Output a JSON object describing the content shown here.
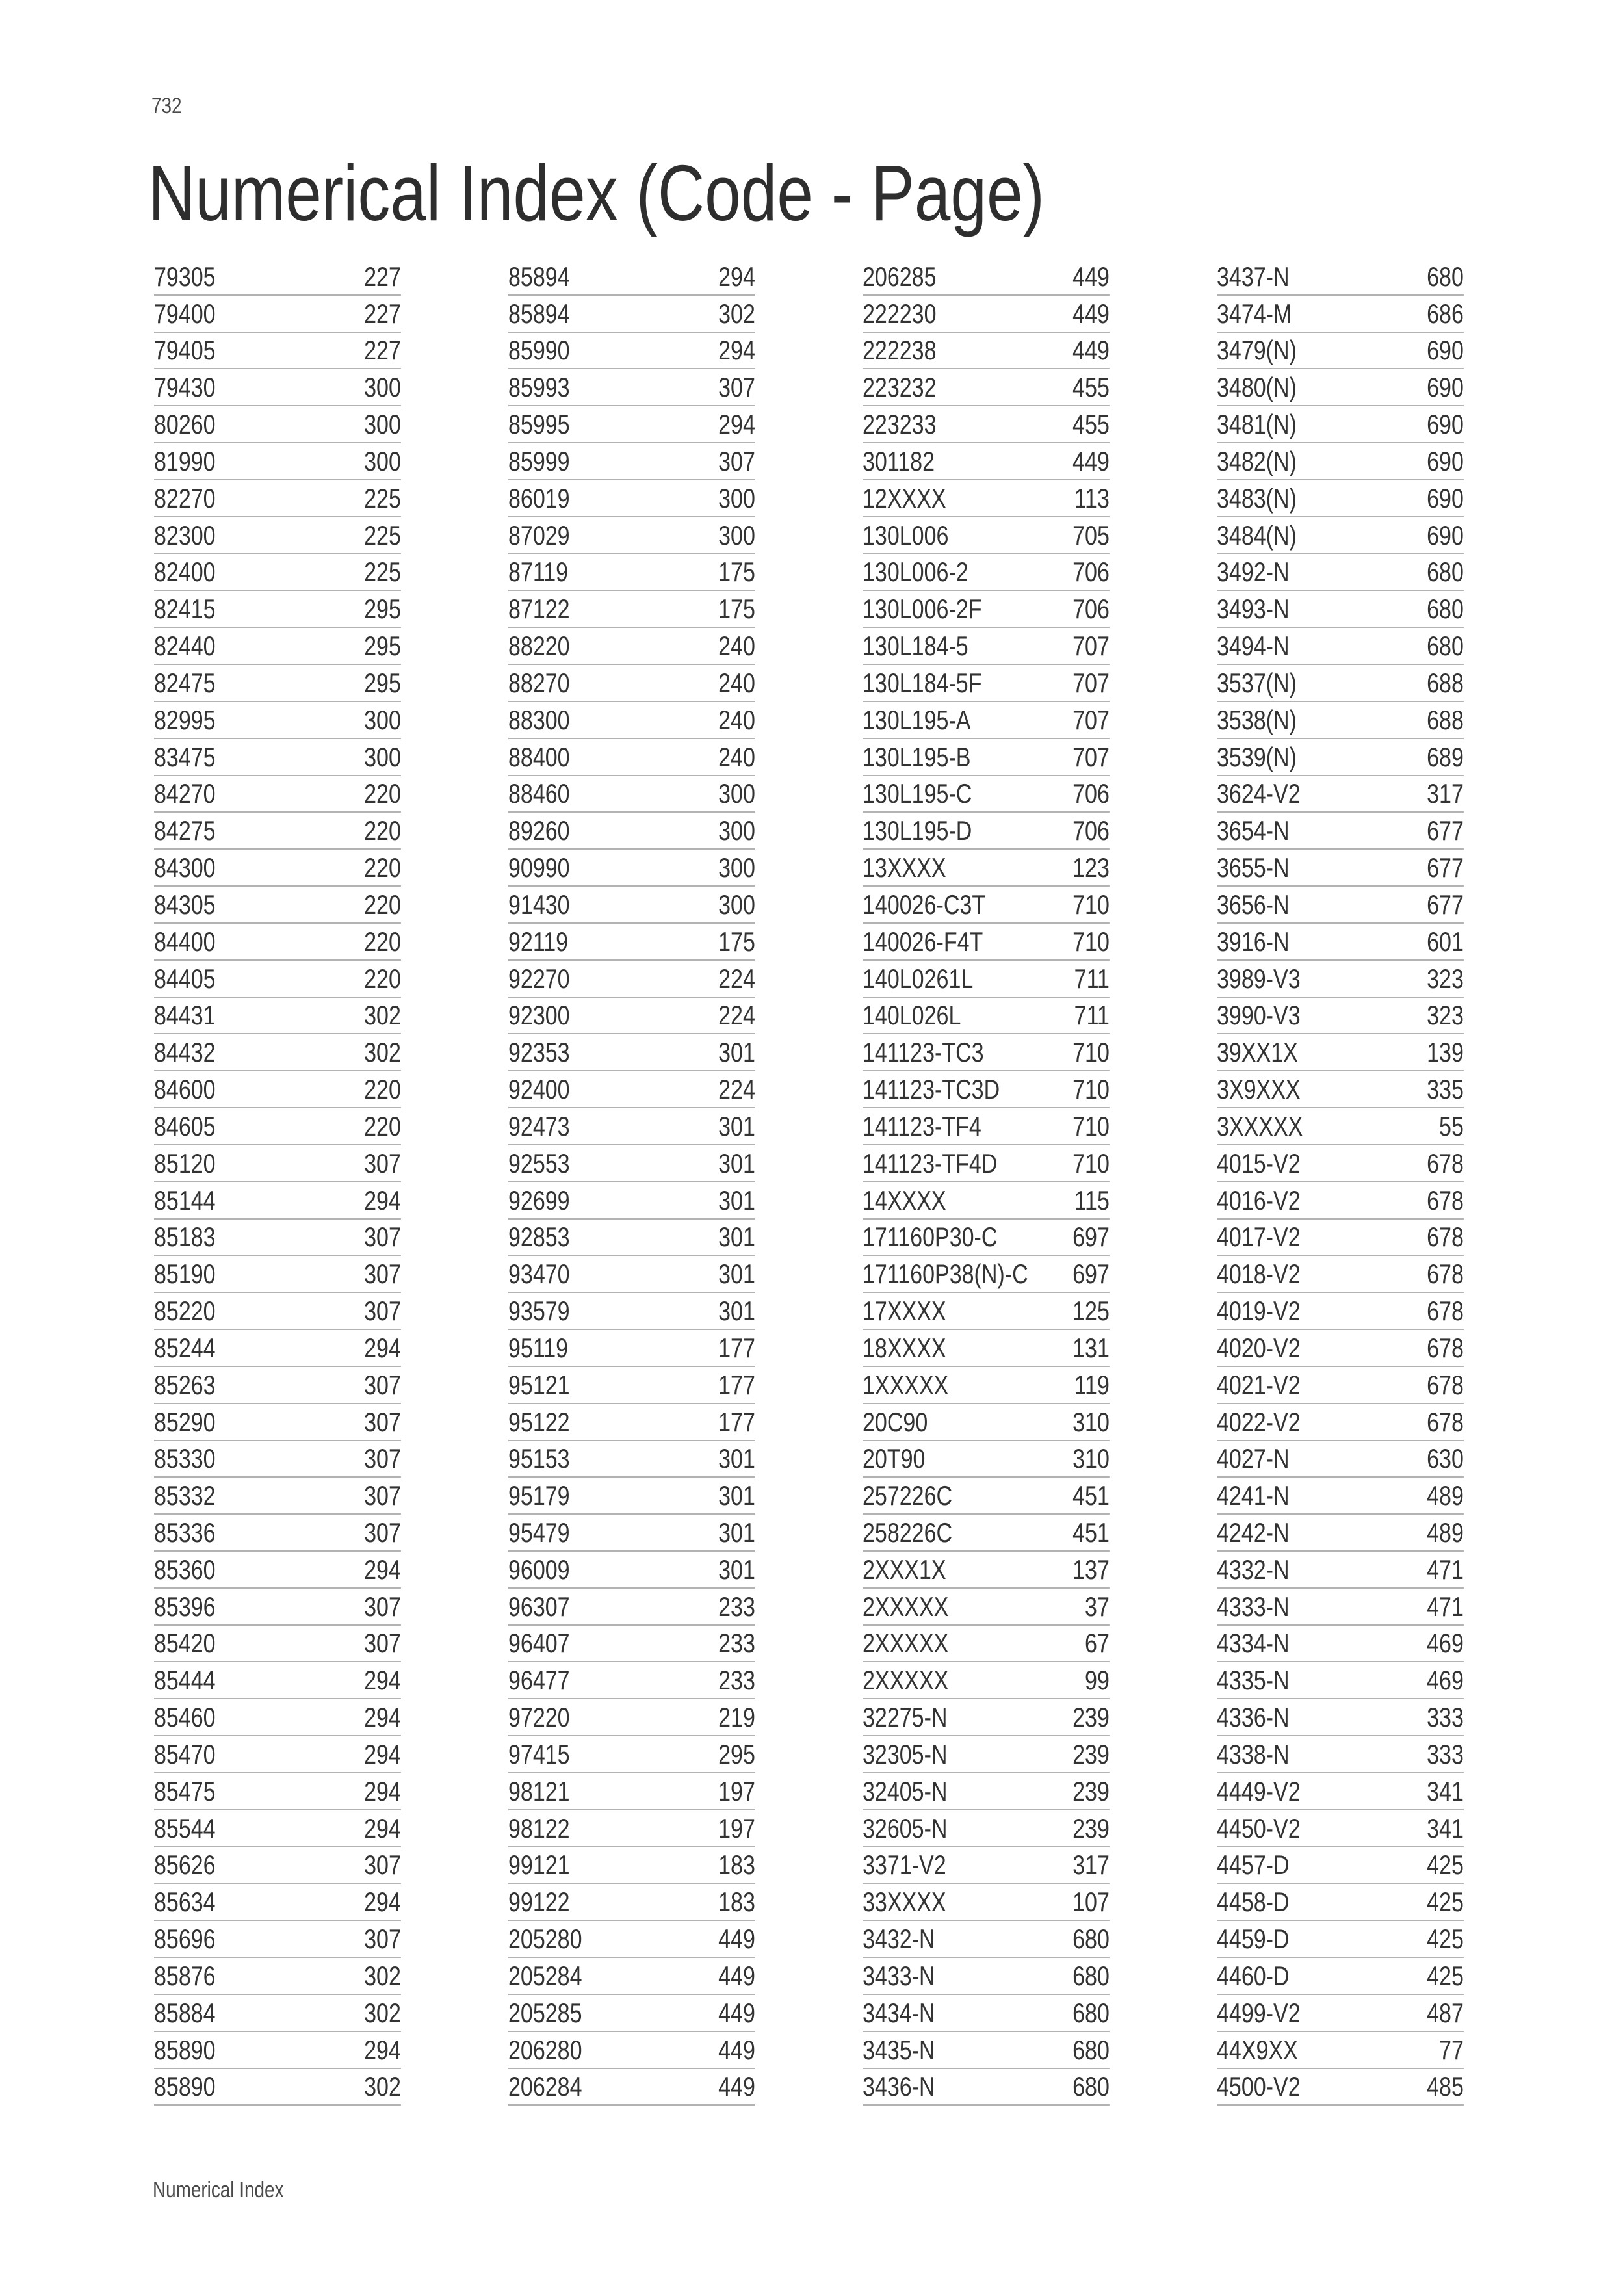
{
  "page": {
    "number": "732",
    "title": "Numerical Index (Code - Page)",
    "footer": "Numerical Index"
  },
  "index": {
    "columns": [
      {
        "entries": [
          {
            "code": "79305",
            "page": "227"
          },
          {
            "code": "79400",
            "page": "227"
          },
          {
            "code": "79405",
            "page": "227"
          },
          {
            "code": "79430",
            "page": "300"
          },
          {
            "code": "80260",
            "page": "300"
          },
          {
            "code": "81990",
            "page": "300"
          },
          {
            "code": "82270",
            "page": "225"
          },
          {
            "code": "82300",
            "page": "225"
          },
          {
            "code": "82400",
            "page": "225"
          },
          {
            "code": "82415",
            "page": "295"
          },
          {
            "code": "82440",
            "page": "295"
          },
          {
            "code": "82475",
            "page": "295"
          },
          {
            "code": "82995",
            "page": "300"
          },
          {
            "code": "83475",
            "page": "300"
          },
          {
            "code": "84270",
            "page": "220"
          },
          {
            "code": "84275",
            "page": "220"
          },
          {
            "code": "84300",
            "page": "220"
          },
          {
            "code": "84305",
            "page": "220"
          },
          {
            "code": "84400",
            "page": "220"
          },
          {
            "code": "84405",
            "page": "220"
          },
          {
            "code": "84431",
            "page": "302"
          },
          {
            "code": "84432",
            "page": "302"
          },
          {
            "code": "84600",
            "page": "220"
          },
          {
            "code": "84605",
            "page": "220"
          },
          {
            "code": "85120",
            "page": "307"
          },
          {
            "code": "85144",
            "page": "294"
          },
          {
            "code": "85183",
            "page": "307"
          },
          {
            "code": "85190",
            "page": "307"
          },
          {
            "code": "85220",
            "page": "307"
          },
          {
            "code": "85244",
            "page": "294"
          },
          {
            "code": "85263",
            "page": "307"
          },
          {
            "code": "85290",
            "page": "307"
          },
          {
            "code": "85330",
            "page": "307"
          },
          {
            "code": "85332",
            "page": "307"
          },
          {
            "code": "85336",
            "page": "307"
          },
          {
            "code": "85360",
            "page": "294"
          },
          {
            "code": "85396",
            "page": "307"
          },
          {
            "code": "85420",
            "page": "307"
          },
          {
            "code": "85444",
            "page": "294"
          },
          {
            "code": "85460",
            "page": "294"
          },
          {
            "code": "85470",
            "page": "294"
          },
          {
            "code": "85475",
            "page": "294"
          },
          {
            "code": "85544",
            "page": "294"
          },
          {
            "code": "85626",
            "page": "307"
          },
          {
            "code": "85634",
            "page": "294"
          },
          {
            "code": "85696",
            "page": "307"
          },
          {
            "code": "85876",
            "page": "302"
          },
          {
            "code": "85884",
            "page": "302"
          },
          {
            "code": "85890",
            "page": "294"
          },
          {
            "code": "85890",
            "page": "302"
          }
        ]
      },
      {
        "entries": [
          {
            "code": "85894",
            "page": "294"
          },
          {
            "code": "85894",
            "page": "302"
          },
          {
            "code": "85990",
            "page": "294"
          },
          {
            "code": "85993",
            "page": "307"
          },
          {
            "code": "85995",
            "page": "294"
          },
          {
            "code": "85999",
            "page": "307"
          },
          {
            "code": "86019",
            "page": "300"
          },
          {
            "code": "87029",
            "page": "300"
          },
          {
            "code": "87119",
            "page": "175"
          },
          {
            "code": "87122",
            "page": "175"
          },
          {
            "code": "88220",
            "page": "240"
          },
          {
            "code": "88270",
            "page": "240"
          },
          {
            "code": "88300",
            "page": "240"
          },
          {
            "code": "88400",
            "page": "240"
          },
          {
            "code": "88460",
            "page": "300"
          },
          {
            "code": "89260",
            "page": "300"
          },
          {
            "code": "90990",
            "page": "300"
          },
          {
            "code": "91430",
            "page": "300"
          },
          {
            "code": "92119",
            "page": "175"
          },
          {
            "code": "92270",
            "page": "224"
          },
          {
            "code": "92300",
            "page": "224"
          },
          {
            "code": "92353",
            "page": "301"
          },
          {
            "code": "92400",
            "page": "224"
          },
          {
            "code": "92473",
            "page": "301"
          },
          {
            "code": "92553",
            "page": "301"
          },
          {
            "code": "92699",
            "page": "301"
          },
          {
            "code": "92853",
            "page": "301"
          },
          {
            "code": "93470",
            "page": "301"
          },
          {
            "code": "93579",
            "page": "301"
          },
          {
            "code": "95119",
            "page": "177"
          },
          {
            "code": "95121",
            "page": "177"
          },
          {
            "code": "95122",
            "page": "177"
          },
          {
            "code": "95153",
            "page": "301"
          },
          {
            "code": "95179",
            "page": "301"
          },
          {
            "code": "95479",
            "page": "301"
          },
          {
            "code": "96009",
            "page": "301"
          },
          {
            "code": "96307",
            "page": "233"
          },
          {
            "code": "96407",
            "page": "233"
          },
          {
            "code": "96477",
            "page": "233"
          },
          {
            "code": "97220",
            "page": "219"
          },
          {
            "code": "97415",
            "page": "295"
          },
          {
            "code": "98121",
            "page": "197"
          },
          {
            "code": "98122",
            "page": "197"
          },
          {
            "code": "99121",
            "page": "183"
          },
          {
            "code": "99122",
            "page": "183"
          },
          {
            "code": "205280",
            "page": "449"
          },
          {
            "code": "205284",
            "page": "449"
          },
          {
            "code": "205285",
            "page": "449"
          },
          {
            "code": "206280",
            "page": "449"
          },
          {
            "code": "206284",
            "page": "449"
          }
        ]
      },
      {
        "entries": [
          {
            "code": "206285",
            "page": "449"
          },
          {
            "code": "222230",
            "page": "449"
          },
          {
            "code": "222238",
            "page": "449"
          },
          {
            "code": "223232",
            "page": "455"
          },
          {
            "code": "223233",
            "page": "455"
          },
          {
            "code": "301182",
            "page": "449"
          },
          {
            "code": "12XXXX",
            "page": "113"
          },
          {
            "code": "130L006",
            "page": "705"
          },
          {
            "code": "130L006-2",
            "page": "706"
          },
          {
            "code": "130L006-2F",
            "page": "706"
          },
          {
            "code": "130L184-5",
            "page": "707"
          },
          {
            "code": "130L184-5F",
            "page": "707"
          },
          {
            "code": "130L195-A",
            "page": "707"
          },
          {
            "code": "130L195-B",
            "page": "707"
          },
          {
            "code": "130L195-C",
            "page": "706"
          },
          {
            "code": "130L195-D",
            "page": "706"
          },
          {
            "code": "13XXXX",
            "page": "123"
          },
          {
            "code": "140026-C3T",
            "page": "710"
          },
          {
            "code": "140026-F4T",
            "page": "710"
          },
          {
            "code": "140L0261L",
            "page": "711"
          },
          {
            "code": "140L026L",
            "page": "711"
          },
          {
            "code": "141123-TC3",
            "page": "710"
          },
          {
            "code": "141123-TC3D",
            "page": "710"
          },
          {
            "code": "141123-TF4",
            "page": "710"
          },
          {
            "code": "141123-TF4D",
            "page": "710"
          },
          {
            "code": "14XXXX",
            "page": "115"
          },
          {
            "code": "171160P30-C",
            "page": "697"
          },
          {
            "code": "171160P38(N)-C",
            "page": "697"
          },
          {
            "code": "17XXXX",
            "page": "125"
          },
          {
            "code": "18XXXX",
            "page": "131"
          },
          {
            "code": "1XXXXX",
            "page": "119"
          },
          {
            "code": "20C90",
            "page": "310"
          },
          {
            "code": "20T90",
            "page": "310"
          },
          {
            "code": "257226C",
            "page": "451"
          },
          {
            "code": "258226C",
            "page": "451"
          },
          {
            "code": "2XXX1X",
            "page": "137"
          },
          {
            "code": "2XXXXX",
            "page": "37"
          },
          {
            "code": "2XXXXX",
            "page": "67"
          },
          {
            "code": "2XXXXX",
            "page": "99"
          },
          {
            "code": "32275-N",
            "page": "239"
          },
          {
            "code": "32305-N",
            "page": "239"
          },
          {
            "code": "32405-N",
            "page": "239"
          },
          {
            "code": "32605-N",
            "page": "239"
          },
          {
            "code": "3371-V2",
            "page": "317"
          },
          {
            "code": "33XXXX",
            "page": "107"
          },
          {
            "code": "3432-N",
            "page": "680"
          },
          {
            "code": "3433-N",
            "page": "680"
          },
          {
            "code": "3434-N",
            "page": "680"
          },
          {
            "code": "3435-N",
            "page": "680"
          },
          {
            "code": "3436-N",
            "page": "680"
          }
        ]
      },
      {
        "entries": [
          {
            "code": "3437-N",
            "page": "680"
          },
          {
            "code": "3474-M",
            "page": "686"
          },
          {
            "code": "3479(N)",
            "page": "690"
          },
          {
            "code": "3480(N)",
            "page": "690"
          },
          {
            "code": "3481(N)",
            "page": "690"
          },
          {
            "code": "3482(N)",
            "page": "690"
          },
          {
            "code": "3483(N)",
            "page": "690"
          },
          {
            "code": "3484(N)",
            "page": "690"
          },
          {
            "code": "3492-N",
            "page": "680"
          },
          {
            "code": "3493-N",
            "page": "680"
          },
          {
            "code": "3494-N",
            "page": "680"
          },
          {
            "code": "3537(N)",
            "page": "688"
          },
          {
            "code": "3538(N)",
            "page": "688"
          },
          {
            "code": "3539(N)",
            "page": "689"
          },
          {
            "code": "3624-V2",
            "page": "317"
          },
          {
            "code": "3654-N",
            "page": "677"
          },
          {
            "code": "3655-N",
            "page": "677"
          },
          {
            "code": "3656-N",
            "page": "677"
          },
          {
            "code": "3916-N",
            "page": "601"
          },
          {
            "code": "3989-V3",
            "page": "323"
          },
          {
            "code": "3990-V3",
            "page": "323"
          },
          {
            "code": "39XX1X",
            "page": "139"
          },
          {
            "code": "3X9XXX",
            "page": "335"
          },
          {
            "code": "3XXXXX",
            "page": "55"
          },
          {
            "code": "4015-V2",
            "page": "678"
          },
          {
            "code": "4016-V2",
            "page": "678"
          },
          {
            "code": "4017-V2",
            "page": "678"
          },
          {
            "code": "4018-V2",
            "page": "678"
          },
          {
            "code": "4019-V2",
            "page": "678"
          },
          {
            "code": "4020-V2",
            "page": "678"
          },
          {
            "code": "4021-V2",
            "page": "678"
          },
          {
            "code": "4022-V2",
            "page": "678"
          },
          {
            "code": "4027-N",
            "page": "630"
          },
          {
            "code": "4241-N",
            "page": "489"
          },
          {
            "code": "4242-N",
            "page": "489"
          },
          {
            "code": "4332-N",
            "page": "471"
          },
          {
            "code": "4333-N",
            "page": "471"
          },
          {
            "code": "4334-N",
            "page": "469"
          },
          {
            "code": "4335-N",
            "page": "469"
          },
          {
            "code": "4336-N",
            "page": "333"
          },
          {
            "code": "4338-N",
            "page": "333"
          },
          {
            "code": "4449-V2",
            "page": "341"
          },
          {
            "code": "4450-V2",
            "page": "341"
          },
          {
            "code": "4457-D",
            "page": "425"
          },
          {
            "code": "4458-D",
            "page": "425"
          },
          {
            "code": "4459-D",
            "page": "425"
          },
          {
            "code": "4460-D",
            "page": "425"
          },
          {
            "code": "4499-V2",
            "page": "487"
          },
          {
            "code": "44X9XX",
            "page": "77"
          },
          {
            "code": "4500-V2",
            "page": "485"
          }
        ]
      }
    ]
  }
}
